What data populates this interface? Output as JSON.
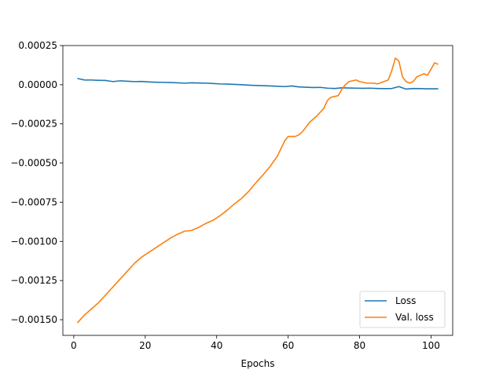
{
  "chart_data": {
    "type": "line",
    "xlabel": "Epochs",
    "ylabel": "",
    "title": "",
    "xlim": [
      -3.05,
      106.05
    ],
    "ylim": [
      -0.0016,
      0.00025
    ],
    "x_ticks": [
      0,
      20,
      40,
      60,
      80,
      100
    ],
    "x_tick_labels": [
      "0",
      "20",
      "40",
      "60",
      "80",
      "100"
    ],
    "y_ticks": [
      0.00025,
      0.0,
      -0.00025,
      -0.0005,
      -0.00075,
      -0.001,
      -0.00125,
      -0.0015
    ],
    "y_tick_labels": [
      "0.00025",
      "0.00000",
      "−0.00025",
      "−0.00050",
      "−0.00075",
      "−0.00100",
      "−0.00125",
      "−0.00150"
    ],
    "grid": false,
    "legend": {
      "placement": "lower-right"
    },
    "series": [
      {
        "name": "Loss",
        "color": "#1f77b4",
        "x": [
          1,
          3,
          5,
          7,
          9,
          11,
          13,
          15,
          17,
          19,
          21,
          23,
          25,
          27,
          29,
          31,
          33,
          35,
          37,
          39,
          41,
          43,
          45,
          47,
          49,
          51,
          53,
          55,
          57,
          59,
          61,
          63,
          65,
          67,
          69,
          71,
          73,
          75,
          77,
          79,
          81,
          83,
          85,
          87,
          89,
          91,
          93,
          95,
          97,
          99,
          101,
          102
        ],
        "values": [
          4e-05,
          3e-05,
          3e-05,
          2.8e-05,
          2.7e-05,
          2e-05,
          2.5e-05,
          2.2e-05,
          2e-05,
          2.1e-05,
          1.8e-05,
          1.6e-05,
          1.5e-05,
          1.4e-05,
          1.2e-05,
          1e-05,
          1.2e-05,
          1.1e-05,
          1e-05,
          8e-06,
          5e-06,
          4e-06,
          2e-06,
          0.0,
          -3e-06,
          -5e-06,
          -6e-06,
          -8e-06,
          -1e-05,
          -1.2e-05,
          -8e-06,
          -1.4e-05,
          -1.6e-05,
          -1.8e-05,
          -1.7e-05,
          -2.2e-05,
          -2.4e-05,
          -2e-05,
          -2.1e-05,
          -2.2e-05,
          -2.3e-05,
          -2.2e-05,
          -2.4e-05,
          -2.5e-05,
          -2.4e-05,
          -1.2e-05,
          -2.8e-05,
          -2.4e-05,
          -2.5e-05,
          -2.6e-05,
          -2.6e-05,
          -2.6e-05
        ]
      },
      {
        "name": "Val. loss",
        "color": "#ff7f0e",
        "x": [
          1,
          3,
          5,
          7,
          9,
          11,
          13,
          15,
          17,
          19,
          21,
          23,
          25,
          27,
          29,
          31,
          33,
          35,
          37,
          39,
          41,
          43,
          45,
          47,
          49,
          51,
          53,
          55,
          57,
          59,
          60,
          62,
          63,
          64,
          66,
          68,
          70,
          71,
          72,
          74,
          75,
          76,
          77,
          79,
          80,
          82,
          84,
          85,
          88,
          89,
          90,
          91,
          92,
          93,
          94,
          95,
          96,
          97,
          98,
          99,
          100,
          101,
          102
        ],
        "values": [
          -0.00152,
          -0.00147,
          -0.00143,
          -0.00139,
          -0.00134,
          -0.00129,
          -0.00124,
          -0.00119,
          -0.00114,
          -0.0011,
          -0.00107,
          -0.00104,
          -0.00101,
          -0.00098,
          -0.000955,
          -0.000935,
          -0.00093,
          -0.00091,
          -0.000885,
          -0.000865,
          -0.000835,
          -0.0008,
          -0.00076,
          -0.000725,
          -0.00068,
          -0.000625,
          -0.000575,
          -0.00052,
          -0.000455,
          -0.00036,
          -0.00033,
          -0.00033,
          -0.00032,
          -0.0003,
          -0.00024,
          -0.0002,
          -0.00015,
          -0.0001,
          -8e-05,
          -7e-05,
          -3e-05,
          0.0,
          2e-05,
          3e-05,
          2e-05,
          1e-05,
          1e-05,
          5e-06,
          3e-05,
          9e-05,
          0.00017,
          0.00015,
          5e-05,
          2e-05,
          1e-05,
          2e-05,
          5e-05,
          6e-05,
          7e-05,
          6e-05,
          0.0001,
          0.00014,
          0.00013
        ]
      }
    ]
  }
}
